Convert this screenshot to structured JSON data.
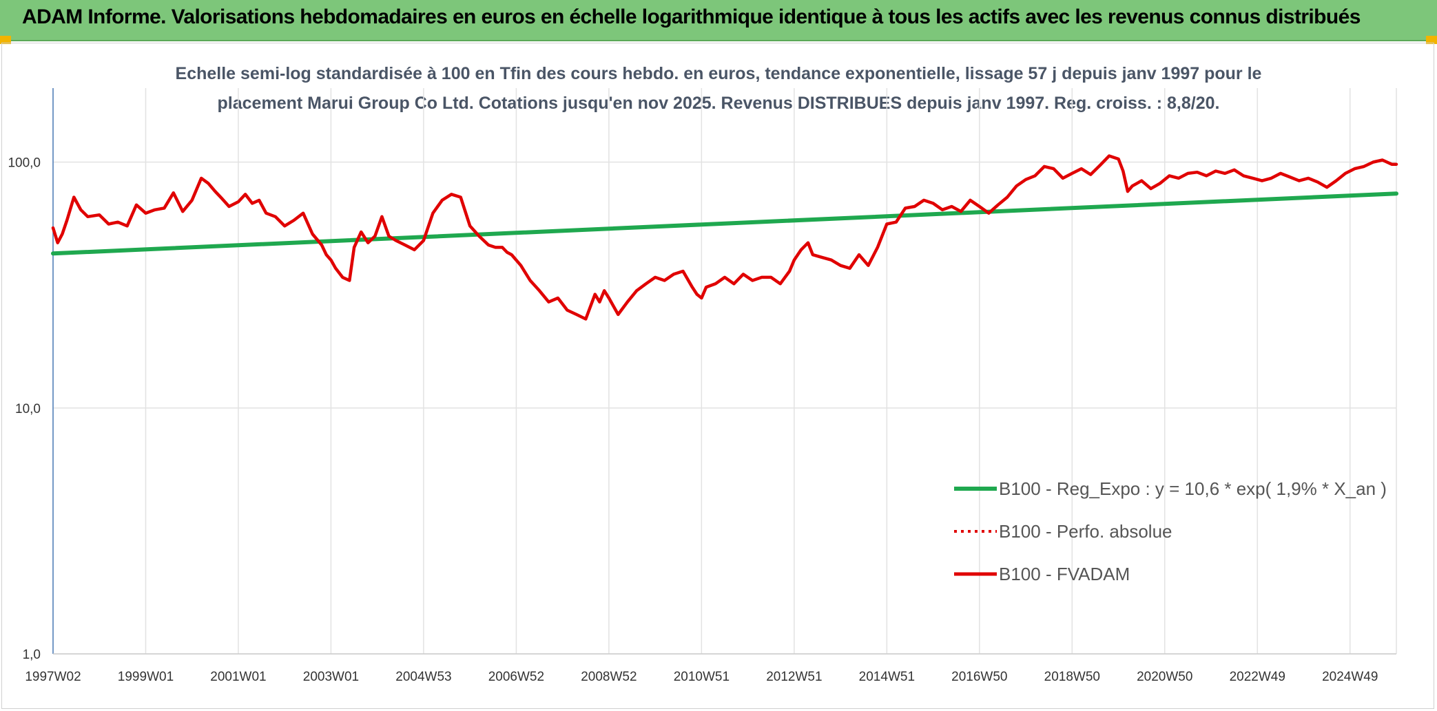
{
  "header": {
    "title": "ADAM Informe. Valorisations hebdomadaires en euros en échelle logarithmique identique à tous les actifs avec les revenus connus distribués"
  },
  "chart_data": {
    "type": "line",
    "subtitle_lines": [
      "Echelle semi-log standardisée à 100 en Tfin des cours hebdo. en euros, tendance exponentielle, lissage 57 j depuis janv 1997 pour le",
      "placement Marui Group Co Ltd. Cotations jusqu'en nov 2025. Revenus DISTRIBUES depuis janv 1997. Reg. croiss. : 8,8/20."
    ],
    "y_scale": "log",
    "ylim": [
      1,
      200
    ],
    "y_ticks": [
      {
        "value": 1,
        "label": "1,0"
      },
      {
        "value": 10,
        "label": "10,0"
      },
      {
        "value": 100,
        "label": "100,0"
      }
    ],
    "xlim": [
      1997.0,
      2026.0
    ],
    "x_ticks": [
      {
        "value": 1997.0,
        "label": "1997W02"
      },
      {
        "value": 1999.0,
        "label": "1999W01"
      },
      {
        "value": 2001.0,
        "label": "2001W01"
      },
      {
        "value": 2003.0,
        "label": "2003W01"
      },
      {
        "value": 2005.0,
        "label": "2004W53"
      },
      {
        "value": 2007.0,
        "label": "2006W52"
      },
      {
        "value": 2009.0,
        "label": "2008W52"
      },
      {
        "value": 2011.0,
        "label": "2010W51"
      },
      {
        "value": 2013.0,
        "label": "2012W51"
      },
      {
        "value": 2015.0,
        "label": "2014W51"
      },
      {
        "value": 2017.0,
        "label": "2016W50"
      },
      {
        "value": 2019.0,
        "label": "2018W50"
      },
      {
        "value": 2021.0,
        "label": "2020W50"
      },
      {
        "value": 2023.0,
        "label": "2022W49"
      },
      {
        "value": 2025.0,
        "label": "2024W49"
      }
    ],
    "grid": "vertical-and-horizontal",
    "legend_position": "bottom-right",
    "series": [
      {
        "name": "B100 - Reg_Expo : y = 10,6 * exp( 1,9% *  X_an )",
        "color": "#1fa84f",
        "style": "solid",
        "x": [
          1997.0,
          2026.0
        ],
        "y": [
          42.5,
          74.5
        ]
      },
      {
        "name": "B100 - Perfo. absolue",
        "color": "#e00000",
        "style": "dotted",
        "x": [],
        "y": []
      },
      {
        "name": "B100 - FVADAM",
        "color": "#e00000",
        "style": "solid",
        "x": [
          1997.0,
          1997.1,
          1997.2,
          1997.3,
          1997.45,
          1997.6,
          1997.75,
          1998.0,
          1998.2,
          1998.4,
          1998.6,
          1998.8,
          1999.0,
          1999.2,
          1999.4,
          1999.6,
          1999.8,
          2000.0,
          2000.2,
          2000.35,
          2000.5,
          2000.65,
          2000.8,
          2001.0,
          2001.15,
          2001.3,
          2001.45,
          2001.6,
          2001.8,
          2002.0,
          2002.2,
          2002.4,
          2002.6,
          2002.8,
          2002.9,
          2003.0,
          2003.1,
          2003.25,
          2003.4,
          2003.5,
          2003.65,
          2003.8,
          2003.95,
          2004.1,
          2004.25,
          2004.4,
          2004.6,
          2004.8,
          2005.0,
          2005.2,
          2005.4,
          2005.6,
          2005.8,
          2006.0,
          2006.2,
          2006.4,
          2006.55,
          2006.7,
          2006.8,
          2006.9,
          2007.1,
          2007.3,
          2007.5,
          2007.7,
          2007.9,
          2008.1,
          2008.3,
          2008.5,
          2008.7,
          2008.8,
          2008.9,
          2009.0,
          2009.2,
          2009.4,
          2009.6,
          2009.8,
          2010.0,
          2010.2,
          2010.4,
          2010.6,
          2010.8,
          2010.9,
          2011.0,
          2011.1,
          2011.3,
          2011.5,
          2011.7,
          2011.9,
          2012.1,
          2012.3,
          2012.5,
          2012.7,
          2012.9,
          2013.0,
          2013.15,
          2013.3,
          2013.4,
          2013.6,
          2013.8,
          2014.0,
          2014.2,
          2014.4,
          2014.6,
          2014.8,
          2015.0,
          2015.2,
          2015.4,
          2015.6,
          2015.8,
          2016.0,
          2016.2,
          2016.4,
          2016.6,
          2016.8,
          2017.0,
          2017.2,
          2017.4,
          2017.6,
          2017.8,
          2018.0,
          2018.2,
          2018.4,
          2018.6,
          2018.8,
          2019.0,
          2019.2,
          2019.4,
          2019.6,
          2019.8,
          2020.0,
          2020.1,
          2020.2,
          2020.3,
          2020.5,
          2020.7,
          2020.9,
          2021.1,
          2021.3,
          2021.5,
          2021.7,
          2021.9,
          2022.1,
          2022.3,
          2022.5,
          2022.7,
          2022.9,
          2023.1,
          2023.3,
          2023.5,
          2023.7,
          2023.9,
          2024.1,
          2024.3,
          2024.5,
          2024.7,
          2024.9,
          2025.1,
          2025.3,
          2025.5,
          2025.7,
          2025.9,
          2026.0
        ],
        "y": [
          54,
          47,
          51,
          58,
          72,
          64,
          60,
          61,
          56,
          57,
          55,
          67,
          62,
          64,
          65,
          75,
          63,
          70,
          86,
          82,
          76,
          71,
          66,
          69,
          74,
          68,
          70,
          62,
          60,
          55,
          58,
          62,
          51,
          46,
          42,
          40,
          37,
          34,
          33,
          45,
          52,
          47,
          50,
          60,
          50,
          48,
          46,
          44,
          48,
          62,
          70,
          74,
          72,
          55,
          50,
          46,
          45,
          45,
          43,
          42,
          38,
          33,
          30,
          27,
          28,
          25,
          24,
          23,
          29,
          27,
          30,
          28,
          24,
          27,
          30,
          32,
          34,
          33,
          35,
          36,
          31,
          29,
          28,
          31,
          32,
          34,
          32,
          35,
          33,
          34,
          34,
          32,
          36,
          40,
          44,
          47,
          42,
          41,
          40,
          38,
          37,
          42,
          38,
          45,
          56,
          57,
          65,
          66,
          70,
          68,
          64,
          66,
          63,
          70,
          66,
          62,
          67,
          72,
          80,
          85,
          88,
          96,
          94,
          86,
          90,
          94,
          89,
          97,
          106,
          103,
          92,
          76,
          80,
          84,
          78,
          82,
          88,
          86,
          90,
          91,
          88,
          92,
          90,
          93,
          88,
          86,
          84,
          86,
          90,
          87,
          84,
          86,
          83,
          79,
          84,
          90,
          94,
          96,
          100,
          102,
          98,
          98
        ]
      }
    ]
  }
}
